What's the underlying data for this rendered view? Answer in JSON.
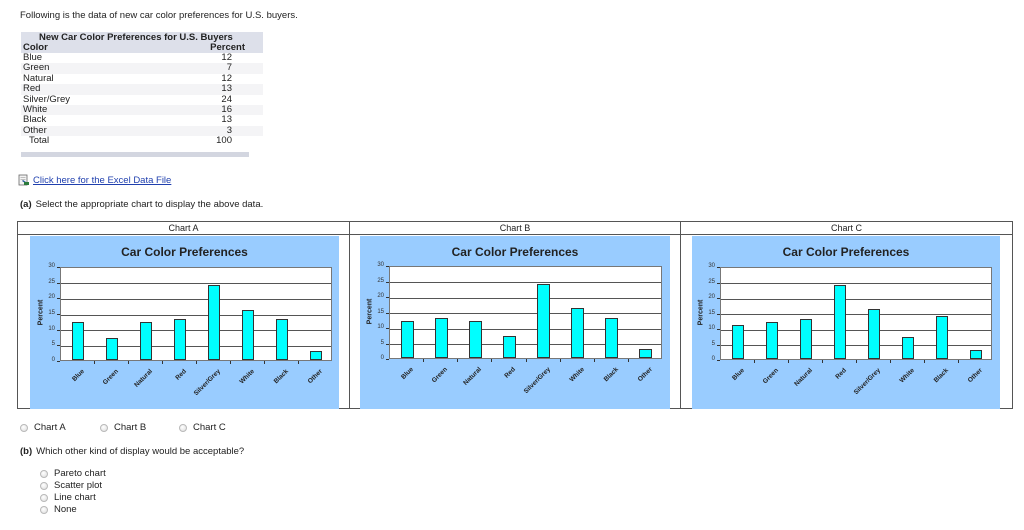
{
  "intro": "Following is the data of new car color preferences for U.S. buyers.",
  "data_table": {
    "title": "New Car Color Preferences for U.S. Buyers",
    "columns": [
      "Color",
      "Percent"
    ],
    "rows": [
      {
        "color": "Blue",
        "percent": "12"
      },
      {
        "color": "Green",
        "percent": "7"
      },
      {
        "color": "Natural",
        "percent": "12"
      },
      {
        "color": "Red",
        "percent": "13"
      },
      {
        "color": "Silver/Grey",
        "percent": "24"
      },
      {
        "color": "White",
        "percent": "16"
      },
      {
        "color": "Black",
        "percent": "13"
      },
      {
        "color": "Other",
        "percent": "3"
      }
    ],
    "total_label": "Total",
    "total_value": "100"
  },
  "excel_link": {
    "icon": "excel-file-icon",
    "label": "Click here for the Excel Data File"
  },
  "question_a": {
    "letter": "(a)",
    "text": "Select the appropriate chart to display the above data."
  },
  "charts_header": [
    "Chart A",
    "Chart B",
    "Chart C"
  ],
  "options_a": [
    "Chart A",
    "Chart B",
    "Chart C"
  ],
  "question_b": {
    "letter": "(b)",
    "text": "Which other kind of display would be acceptable?"
  },
  "options_b": [
    "Pareto chart",
    "Scatter plot",
    "Line chart",
    "None"
  ],
  "colors": {
    "bar": "#00ffff",
    "chart_bg": "#99ccff",
    "table_header": "#dde0ea",
    "link": "#1f3fae"
  },
  "chart_data": [
    {
      "type": "bar",
      "name": "Chart A",
      "title": "Car Color Preferences",
      "xlabel": "",
      "ylabel": "Percent",
      "ylim": [
        0,
        30
      ],
      "yticks": [
        0,
        5,
        10,
        15,
        20,
        25,
        30
      ],
      "grid": true,
      "legend": "none",
      "categories": [
        "Blue",
        "Green",
        "Natural",
        "Red",
        "Silver/Grey",
        "White",
        "Black",
        "Other"
      ],
      "values": [
        12,
        7,
        12,
        13,
        24,
        16,
        13,
        3
      ]
    },
    {
      "type": "bar",
      "name": "Chart B",
      "title": "Car Color Preferences",
      "xlabel": "",
      "ylabel": "Percent",
      "ylim": [
        0,
        30
      ],
      "yticks": [
        0,
        5,
        10,
        15,
        20,
        25,
        30
      ],
      "grid": true,
      "legend": "none",
      "categories": [
        "Blue",
        "Green",
        "Natural",
        "Red",
        "Silver/Grey",
        "White",
        "Black",
        "Other"
      ],
      "values": [
        12,
        13,
        12,
        7,
        24,
        16,
        13,
        3
      ]
    },
    {
      "type": "bar",
      "name": "Chart C",
      "title": "Car Color Preferences",
      "xlabel": "",
      "ylabel": "Percent",
      "ylim": [
        0,
        30
      ],
      "yticks": [
        0,
        5,
        10,
        15,
        20,
        25,
        30
      ],
      "grid": true,
      "legend": "none",
      "categories": [
        "Blue",
        "Green",
        "Natural",
        "Red",
        "Silver/Grey",
        "White",
        "Black",
        "Other"
      ],
      "values": [
        11,
        12,
        13,
        24,
        16,
        7,
        14,
        3
      ]
    }
  ]
}
